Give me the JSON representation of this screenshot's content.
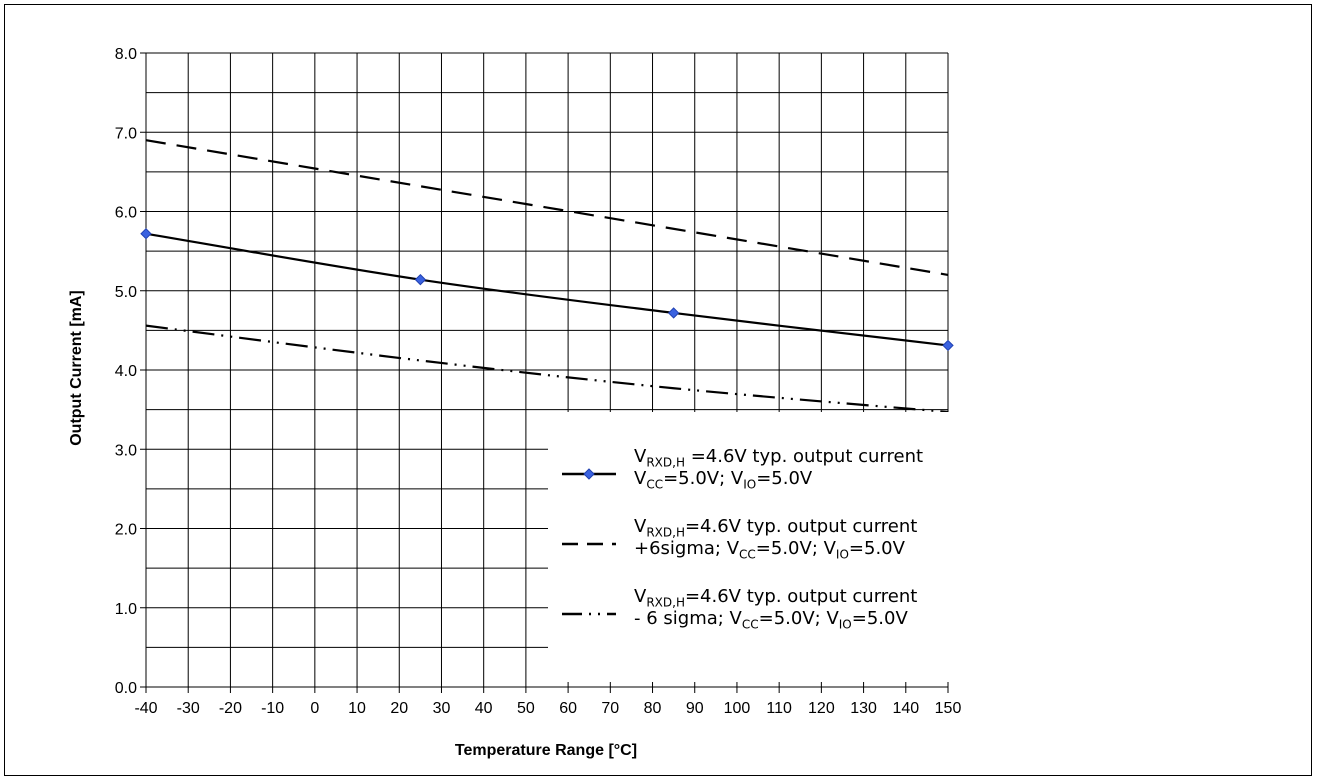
{
  "chart_data": {
    "type": "line",
    "title": "",
    "xlabel": "Temperature Range [°C]",
    "ylabel": "Output Current [mA]",
    "xlim": [
      -40,
      150
    ],
    "ylim": [
      0,
      8
    ],
    "xticks": [
      -40,
      -30,
      -20,
      -10,
      0,
      10,
      20,
      30,
      40,
      50,
      60,
      70,
      80,
      90,
      100,
      110,
      120,
      130,
      140,
      150
    ],
    "xtick_labels": [
      "-40",
      "-30",
      "-20",
      "-10",
      "0",
      "10",
      "20",
      "30",
      "40",
      "50",
      "60",
      "70",
      "80",
      "90",
      "100",
      "110",
      "120",
      "130",
      "140",
      "150"
    ],
    "yticks": [
      0,
      1,
      2,
      3,
      4,
      5,
      6,
      7,
      8
    ],
    "ytick_labels": [
      "0.0",
      "1.0",
      "2.0",
      "3.0",
      "4.0",
      "5.0",
      "6.0",
      "7.0",
      "8.0"
    ],
    "grid": true,
    "legend_position": "bottom-right",
    "series": [
      {
        "style": "solid",
        "color": "#000000",
        "marker_color": "#3a62e0",
        "x": [
          -40,
          25,
          85,
          150
        ],
        "y": [
          5.72,
          5.14,
          4.72,
          4.31
        ],
        "legend": {
          "line1_main": "V",
          "line1_sub": "RXD,H",
          "line1_rest": " =4.6V typ. output current",
          "line2_a": "V",
          "line2_a_sub": "CC",
          "line2_b": "=5.0V; V",
          "line2_b_sub": "IO",
          "line2_c": "=5.0V"
        }
      },
      {
        "style": "dashed",
        "color": "#000000",
        "x": [
          -40,
          150
        ],
        "y": [
          6.9,
          5.2
        ],
        "legend": {
          "line1_main": "V",
          "line1_sub": "RXD,H",
          "line1_rest": "=4.6V typ. output current",
          "line2_pre": "+6sigma; ",
          "line2_a": "V",
          "line2_a_sub": "CC",
          "line2_b": "=5.0V; V",
          "line2_b_sub": "IO",
          "line2_c": "=5.0V"
        }
      },
      {
        "style": "dash-dot-dot",
        "color": "#000000",
        "x": [
          -40,
          25,
          85,
          150
        ],
        "y": [
          4.56,
          4.12,
          3.77,
          3.47
        ],
        "legend": {
          "line1_main": "V",
          "line1_sub": "RXD,H",
          "line1_rest": "=4.6V typ. output current",
          "line2_pre": "- 6 sigma; ",
          "line2_a": "V",
          "line2_a_sub": "CC",
          "line2_b": "=5.0V; V",
          "line2_b_sub": "IO",
          "line2_c": "=5.0V"
        }
      }
    ]
  }
}
